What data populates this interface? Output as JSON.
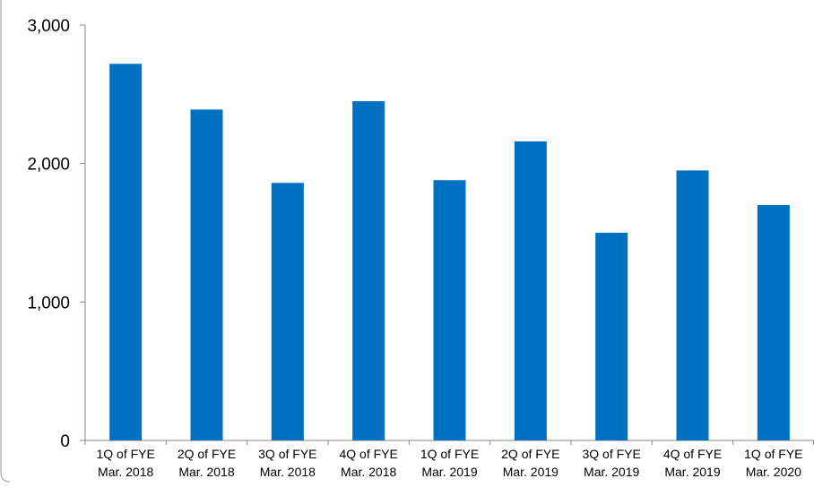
{
  "chart_data": {
    "type": "bar",
    "title": "",
    "xlabel": "",
    "ylabel": "",
    "ylim": [
      0,
      3000
    ],
    "y_ticks": [
      {
        "value": 0,
        "label": "0"
      },
      {
        "value": 1000,
        "label": "1,000"
      },
      {
        "value": 2000,
        "label": "2,000"
      },
      {
        "value": 3000,
        "label": "3,000"
      }
    ],
    "grid": false,
    "legend": "none",
    "bar_color": "#0070C0",
    "categories": [
      [
        "1Q of FYE",
        "Mar. 2018"
      ],
      [
        "2Q of FYE",
        "Mar. 2018"
      ],
      [
        "3Q of FYE",
        "Mar. 2018"
      ],
      [
        "4Q of FYE",
        "Mar. 2018"
      ],
      [
        "1Q of FYE",
        "Mar. 2019"
      ],
      [
        "2Q of FYE",
        "Mar. 2019"
      ],
      [
        "3Q of FYE",
        "Mar. 2019"
      ],
      [
        "4Q of FYE",
        "Mar. 2019"
      ],
      [
        "1Q of FYE",
        "Mar. 2020"
      ]
    ],
    "values": [
      2720,
      2390,
      1860,
      2450,
      1880,
      2160,
      1500,
      1950,
      1700
    ]
  }
}
